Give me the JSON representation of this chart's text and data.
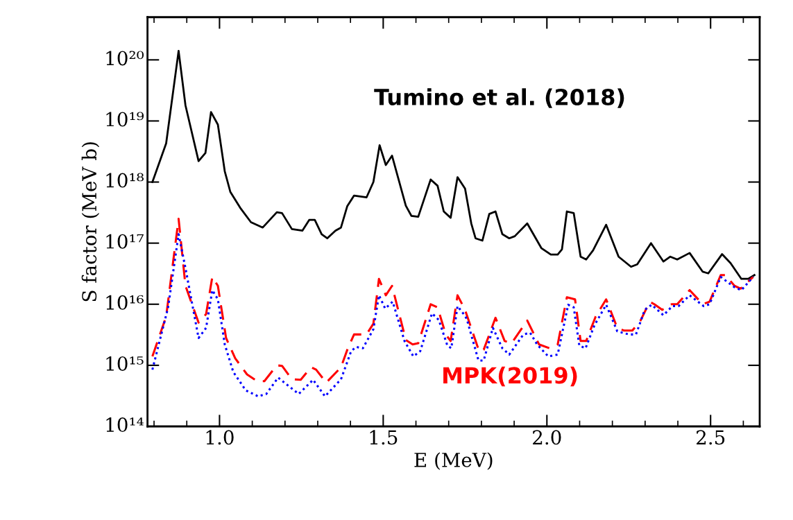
{
  "chart_data": {
    "type": "line",
    "xlabel": "E (MeV)",
    "ylabel": "S factor (MeV b)",
    "log": "y",
    "xlim": [
      0.78,
      2.65
    ],
    "xticks": [
      {
        "value": 1.0,
        "label": "1.0"
      },
      {
        "value": 1.5,
        "label": "1.5"
      },
      {
        "value": 2.0,
        "label": "2.0"
      },
      {
        "value": 2.5,
        "label": "2.5"
      }
    ],
    "ylim": [
      100000000000000.0,
      5e+20
    ],
    "yticks": [
      {
        "value": 100000000000000.0,
        "label": "10¹⁴"
      },
      {
        "value": 1000000000000000.0,
        "label": "10¹⁵"
      },
      {
        "value": 1e+16,
        "label": "10¹⁶"
      },
      {
        "value": 1e+17,
        "label": "10¹⁷"
      },
      {
        "value": 1e+18,
        "label": "10¹⁸"
      },
      {
        "value": 1e+19,
        "label": "10¹⁹"
      },
      {
        "value": 1e+20,
        "label": "10²⁰"
      }
    ],
    "grid": false,
    "legend": false,
    "marker": "none",
    "series": [
      {
        "name": "Tumino et al. (2018)",
        "color": "#000000",
        "line_style": "solid",
        "x": [
          0.795,
          0.837,
          0.875,
          0.896,
          0.936,
          0.957,
          0.974,
          0.995,
          1.016,
          1.033,
          1.063,
          1.096,
          1.132,
          1.175,
          1.191,
          1.221,
          1.253,
          1.274,
          1.291,
          1.312,
          1.329,
          1.354,
          1.371,
          1.39,
          1.411,
          1.449,
          1.47,
          1.489,
          1.508,
          1.527,
          1.569,
          1.586,
          1.607,
          1.645,
          1.666,
          1.685,
          1.706,
          1.727,
          1.75,
          1.769,
          1.782,
          1.803,
          1.824,
          1.843,
          1.864,
          1.885,
          1.902,
          1.94,
          1.983,
          2.012,
          2.033,
          2.046,
          2.061,
          2.082,
          2.103,
          2.12,
          2.141,
          2.181,
          2.219,
          2.257,
          2.276,
          2.318,
          2.356,
          2.377,
          2.398,
          2.436,
          2.476,
          2.493,
          2.535,
          2.561,
          2.594,
          2.615,
          2.634
        ],
        "values": [
          1e+18,
          4.3e+18,
          1.4e+20,
          1.8e+19,
          2.2e+18,
          3e+18,
          1.4e+19,
          8.7e+18,
          1.5e+18,
          6.9e+17,
          3.8e+17,
          2.2e+17,
          1.8e+17,
          3.2e+17,
          3.1e+17,
          1.7e+17,
          1.6e+17,
          2.4e+17,
          2.4e+17,
          1.4e+17,
          1.2e+17,
          1.6e+17,
          1.8e+17,
          4e+17,
          6e+17,
          5.6e+17,
          1e+18,
          4e+18,
          1.9e+18,
          2.7e+18,
          4.1e+17,
          2.8e+17,
          2.7e+17,
          1.1e+18,
          8.7e+17,
          3.3e+17,
          2.6e+17,
          1.2e+18,
          7.8e+17,
          2.1e+17,
          1.2e+17,
          1.1e+17,
          3e+17,
          3.3e+17,
          1.4e+17,
          1.2e+17,
          1.3e+17,
          2.1e+17,
          8.3e+16,
          6.5e+16,
          6.5e+16,
          7.9e+16,
          3.3e+17,
          3.1e+17,
          6e+16,
          5.4e+16,
          7.6e+16,
          2e+17,
          6e+16,
          4.1e+16,
          4.5e+16,
          1e+17,
          5e+16,
          6e+16,
          5.4e+16,
          6.9e+16,
          3.4e+16,
          3.2e+16,
          6.6e+16,
          4.7e+16,
          2.6e+16,
          2.6e+16,
          3e+16
        ]
      },
      {
        "name": "MPK(2019)",
        "color": "#ff0000",
        "line_style": "dashed",
        "x": [
          0.795,
          0.837,
          0.875,
          0.896,
          0.936,
          0.959,
          0.978,
          0.995,
          1.02,
          1.048,
          1.084,
          1.115,
          1.137,
          1.175,
          1.191,
          1.221,
          1.248,
          1.28,
          1.295,
          1.326,
          1.371,
          1.392,
          1.411,
          1.449,
          1.47,
          1.487,
          1.508,
          1.527,
          1.569,
          1.59,
          1.607,
          1.645,
          1.666,
          1.691,
          1.706,
          1.727,
          1.75,
          1.793,
          1.807,
          1.843,
          1.871,
          1.892,
          1.94,
          1.976,
          2.008,
          2.033,
          2.061,
          2.086,
          2.103,
          2.12,
          2.149,
          2.181,
          2.215,
          2.236,
          2.261,
          2.286,
          2.314,
          2.328,
          2.352,
          2.381,
          2.398,
          2.436,
          2.476,
          2.497,
          2.531,
          2.546,
          2.573,
          2.592,
          2.63
        ],
        "values": [
          1400000000000000.0,
          6300000000000000.0,
          2.5e+17,
          2e+16,
          5000000000000000.0,
          6900000000000000.0,
          2.8e+16,
          2e+16,
          2800000000000000.0,
          1300000000000000.0,
          710000000000000.0,
          550000000000000.0,
          550000000000000.0,
          1000000000000000.0,
          980000000000000.0,
          590000000000000.0,
          580000000000000.0,
          930000000000000.0,
          850000000000000.0,
          520000000000000.0,
          930000000000000.0,
          1900000000000000.0,
          3200000000000000.0,
          3200000000000000.0,
          4800000000000000.0,
          2.6e+16,
          1.4e+16,
          2e+16,
          2600000000000000.0,
          2200000000000000.0,
          2300000000000000.0,
          1e+16,
          8900000000000000.0,
          3200000000000000.0,
          2500000000000000.0,
          1.4e+16,
          8100000000000000.0,
          1700000000000000.0,
          1800000000000000.0,
          6000000000000000.0,
          2500000000000000.0,
          2300000000000000.0,
          5400000000000000.0,
          2200000000000000.0,
          1900000000000000.0,
          2200000000000000.0,
          1.3e+16,
          1.2e+16,
          2500000000000000.0,
          2500000000000000.0,
          6300000000000000.0,
          1.2e+16,
          4100000000000000.0,
          3700000000000000.0,
          3700000000000000.0,
          5400000000000000.0,
          1.1e+16,
          1e+16,
          8100000000000000.0,
          1e+16,
          1e+16,
          1.7e+16,
          1e+16,
          1.1e+16,
          3e+16,
          3e+16,
          2e+16,
          1.8e+16,
          2.8e+16
        ]
      },
      {
        "color": "#0000ff",
        "line_style": "dotted",
        "x": [
          0.795,
          0.843,
          0.875,
          0.896,
          0.936,
          0.959,
          0.978,
          0.995,
          1.016,
          1.042,
          1.08,
          1.118,
          1.143,
          1.179,
          1.202,
          1.242,
          1.286,
          1.322,
          1.371,
          1.402,
          1.417,
          1.438,
          1.47,
          1.487,
          1.506,
          1.529,
          1.565,
          1.592,
          1.613,
          1.649,
          1.67,
          1.696,
          1.708,
          1.727,
          1.744,
          1.755,
          1.791,
          1.807,
          1.835,
          1.864,
          1.885,
          1.928,
          1.949,
          1.97,
          2.004,
          2.033,
          2.065,
          2.082,
          2.099,
          2.118,
          2.145,
          2.181,
          2.215,
          2.251,
          2.272,
          2.299,
          2.32,
          2.356,
          2.383,
          2.402,
          2.436,
          2.479,
          2.497,
          2.531,
          2.573,
          2.594,
          2.63
        ],
        "values": [
          850000000000000.0,
          8900000000000000.0,
          1.4e+17,
          3.9e+16,
          2800000000000000.0,
          4100000000000000.0,
          1.7e+16,
          1.2e+16,
          2200000000000000.0,
          780000000000000.0,
          390000000000000.0,
          310000000000000.0,
          340000000000000.0,
          630000000000000.0,
          500000000000000.0,
          340000000000000.0,
          580000000000000.0,
          310000000000000.0,
          590000000000000.0,
          1700000000000000.0,
          2000000000000000.0,
          1900000000000000.0,
          3900000000000000.0,
          1.4e+16,
          8500000000000000.0,
          1.1e+16,
          2500000000000000.0,
          1400000000000000.0,
          1700000000000000.0,
          7100000000000000.0,
          5500000000000000.0,
          2100000000000000.0,
          1900000000000000.0,
          9300000000000000.0,
          7100000000000000.0,
          5800000000000000.0,
          1200000000000000.0,
          1200000000000000.0,
          4100000000000000.0,
          1900000000000000.0,
          1500000000000000.0,
          3200000000000000.0,
          3400000000000000.0,
          2200000000000000.0,
          1400000000000000.0,
          1500000000000000.0,
          9800000000000000.0,
          8900000000000000.0,
          2100000000000000.0,
          1900000000000000.0,
          4500000000000000.0,
          9800000000000000.0,
          3600000000000000.0,
          3200000000000000.0,
          3200000000000000.0,
          8100000000000000.0,
          9800000000000000.0,
          6600000000000000.0,
          9300000000000000.0,
          9300000000000000.0,
          1.4e+16,
          9300000000000000.0,
          1e+16,
          2.8e+16,
          1.9e+16,
          1.7e+16,
          2.8e+16
        ]
      }
    ]
  }
}
